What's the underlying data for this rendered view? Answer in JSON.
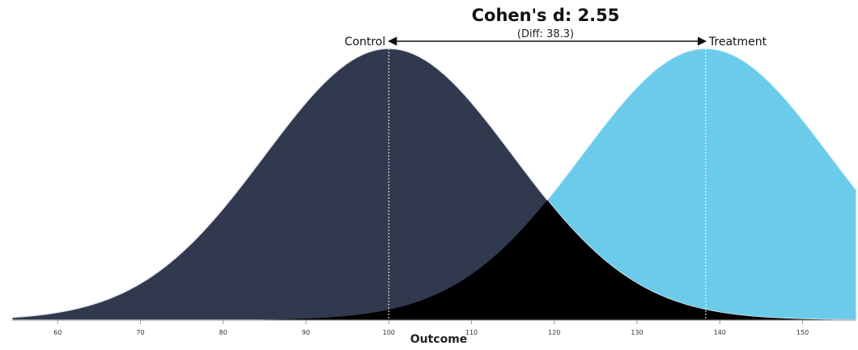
{
  "chart_data": {
    "type": "area",
    "title": "Cohen's d: 2.55",
    "subtitle": "(Diff: 38.3)",
    "xlabel": "Outcome",
    "xlim": [
      54.5,
      156.5
    ],
    "x_ticks": [
      60,
      70,
      80,
      90,
      100,
      110,
      120,
      130,
      140,
      150
    ],
    "grid": false,
    "legend": "none",
    "series": [
      {
        "name": "Control",
        "mean": 100,
        "sd": 15,
        "color": "#31394f"
      },
      {
        "name": "Treatment",
        "mean": 138.3,
        "sd": 15,
        "color": "#6bcbea"
      }
    ],
    "overlap_color": "#000000"
  }
}
